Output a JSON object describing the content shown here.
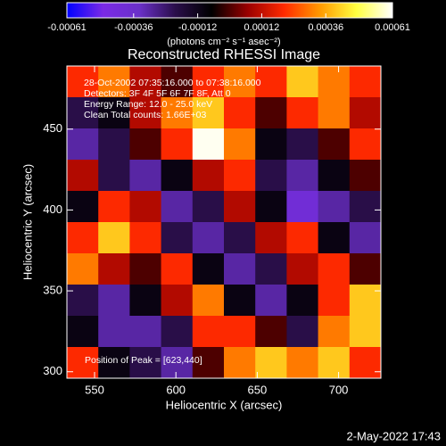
{
  "chart_data": {
    "type": "heatmap",
    "title": "Reconstructed RHESSI Image",
    "x_label": "Heliocentric X (arcsec)",
    "y_label": "Heliocentric Y (arcsec)",
    "xlim": [
      533,
      726
    ],
    "ylim": [
      296,
      489
    ],
    "xticks": [
      550,
      600,
      650,
      700
    ],
    "yticks": [
      300,
      350,
      400,
      450
    ],
    "colorbar_label": "(photons cm⁻² s⁻¹ asec⁻²)",
    "colorbar_lim": [
      -0.00061,
      0.00061
    ],
    "colorbar_ticks": [
      -0.00061,
      -0.00036,
      -0.00012,
      0.00012,
      0.00036,
      0.00061
    ],
    "colormap": [
      "#0000ff",
      "#7a2ae6",
      "#6a30c8",
      "#2a0e4a",
      "#000000",
      "#9a0000",
      "#ff2a00",
      "#ff9a00",
      "#ffff40",
      "#ffffff"
    ],
    "annotations": [
      "28-Oct-2002 07:35:16.000 to 07:38:16.000",
      "Detectors: 3F 4F 5F 6F 7F 8F, Att 0",
      "Energy Range: 12.0 - 25.0 keV",
      "Clean     Total counts: 1.66E+03"
    ],
    "peak_note": "Position of Peak = [623,440]",
    "timestamp": "2-May-2022 17:43",
    "z": [
      [
        0.0002,
        0.0003,
        0.0001,
        0,
        0.0002,
        0.0003,
        0.0002,
        0.0004,
        0.0003,
        0.0002
      ],
      [
        -0.0002,
        -0.0001,
        0.0001,
        0.0003,
        0.0004,
        0.0002,
        0,
        0.0002,
        0.0003,
        0.0001
      ],
      [
        -0.0003,
        -0.0002,
        0,
        0.0002,
        0.0006,
        0.0003,
        -0.0001,
        -0.0002,
        0,
        0.0002
      ],
      [
        0.0001,
        -0.0002,
        -0.0003,
        -0.0001,
        0.0001,
        0.0002,
        -0.0002,
        -0.0003,
        -0.0001,
        0
      ],
      [
        -0.0001,
        0.0002,
        0.0001,
        -0.0003,
        -0.0002,
        0.0001,
        -0.0001,
        -0.0004,
        -0.0003,
        -0.0002
      ],
      [
        0.0002,
        0.0004,
        0.0002,
        -0.0002,
        -0.0003,
        -0.0002,
        0.0001,
        0.0002,
        -0.0001,
        -0.0003
      ],
      [
        0.0003,
        0.0001,
        0,
        0.0002,
        -0.0001,
        -0.0003,
        -0.0002,
        0.0001,
        0.0002,
        0
      ],
      [
        -0.0002,
        -0.0003,
        -0.0001,
        0.0001,
        0.0003,
        -0.0001,
        -0.0003,
        -0.0001,
        0.0002,
        0.0004
      ],
      [
        -0.0001,
        -0.0003,
        -0.0003,
        -0.0002,
        0.0002,
        0.0002,
        0,
        -0.0002,
        0.0003,
        0.0004
      ],
      [
        0.0002,
        -0.0001,
        -0.0002,
        -0.0003,
        0,
        0.0003,
        0.0004,
        0.0003,
        0.0004,
        0.0002
      ]
    ]
  }
}
